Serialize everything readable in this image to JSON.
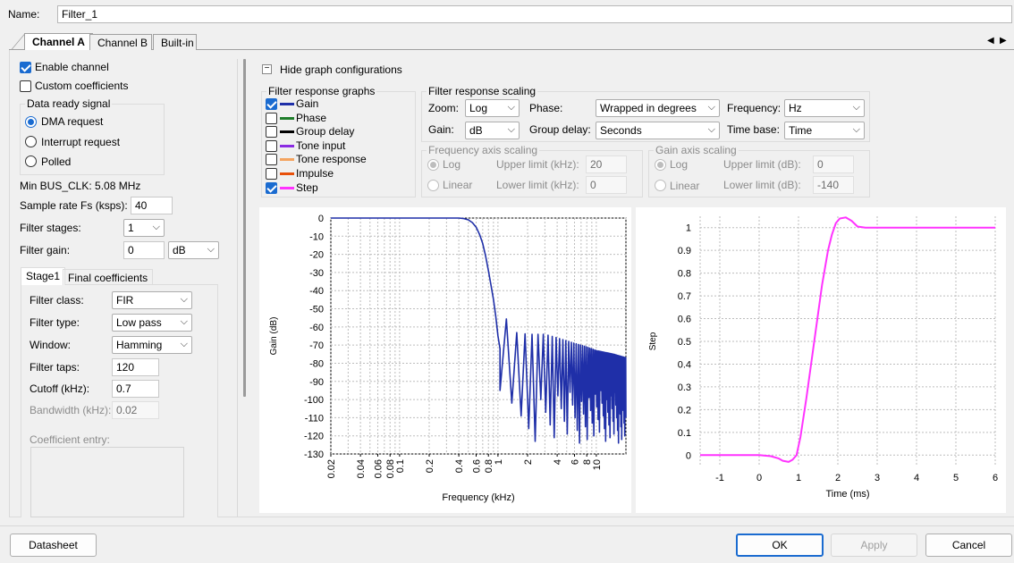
{
  "name_label": "Name:",
  "name_value": "Filter_1",
  "tabs": [
    "Channel A",
    "Channel B",
    "Built-in"
  ],
  "left": {
    "enable_channel": "Enable channel",
    "custom_coefficients": "Custom coefficients",
    "data_ready_signal": "Data ready signal",
    "dma_request": "DMA request",
    "interrupt_request": "Interrupt request",
    "polled": "Polled",
    "min_bus_clk": "Min BUS_CLK: 5.08 MHz",
    "sample_rate_label": "Sample rate Fs (ksps):",
    "sample_rate_value": "40",
    "filter_stages_label": "Filter stages:",
    "filter_stages_value": "1",
    "filter_gain_label": "Filter gain:",
    "filter_gain_value": "0",
    "filter_gain_unit": "dB",
    "stage_tabs": [
      "Stage1",
      "Final coefficients"
    ],
    "filter_class_label": "Filter class:",
    "filter_class_value": "FIR",
    "filter_type_label": "Filter type:",
    "filter_type_value": "Low pass",
    "window_label": "Window:",
    "window_value": "Hamming",
    "filter_taps_label": "Filter taps:",
    "filter_taps_value": "120",
    "cutoff_label": "Cutoff (kHz):",
    "cutoff_value": "0.7",
    "bandwidth_label": "Bandwidth (kHz):",
    "bandwidth_value": "0.02",
    "coefficient_entry": "Coefficient entry:"
  },
  "graph_config": {
    "toggle_label": "Hide graph configurations",
    "toggle_symbol": "−",
    "response_graphs_title": "Filter response graphs",
    "graphs": [
      {
        "label": "Gain",
        "checked": true,
        "color": "#1f2fa8"
      },
      {
        "label": "Phase",
        "checked": false,
        "color": "#1e7d2a"
      },
      {
        "label": "Group delay",
        "checked": false,
        "color": "#000000"
      },
      {
        "label": "Tone input",
        "checked": false,
        "color": "#8a2be2"
      },
      {
        "label": "Tone response",
        "checked": false,
        "color": "#f4a460"
      },
      {
        "label": "Impulse",
        "checked": false,
        "color": "#e8500a"
      },
      {
        "label": "Step",
        "checked": true,
        "color": "#ff33ff"
      }
    ],
    "scaling_title": "Filter response scaling",
    "zoom_label": "Zoom:",
    "zoom_value": "Log",
    "gain_label": "Gain:",
    "gain_value": "dB",
    "phase_label": "Phase:",
    "phase_value": "Wrapped in degrees",
    "group_delay_label": "Group delay:",
    "group_delay_value": "Seconds",
    "frequency_label": "Frequency:",
    "frequency_value": "Hz",
    "time_base_label": "Time base:",
    "time_base_value": "Time",
    "freq_axis_title": "Frequency axis scaling",
    "freq_log": "Log",
    "freq_linear": "Linear",
    "freq_upper_label": "Upper limit (kHz):",
    "freq_upper_value": "20",
    "freq_lower_label": "Lower limit (kHz):",
    "freq_lower_value": "0",
    "gain_axis_title": "Gain axis scaling",
    "gain_log": "Log",
    "gain_linear": "Linear",
    "gain_upper_label": "Upper limit (dB):",
    "gain_upper_value": "0",
    "gain_lower_label": "Lower limit (dB):",
    "gain_lower_value": "-140"
  },
  "buttons": {
    "datasheet": "Datasheet",
    "ok": "OK",
    "apply": "Apply",
    "cancel": "Cancel"
  },
  "chart_data": [
    {
      "type": "line",
      "xlabel": "Frequency (kHz)",
      "ylabel": "Gain (dB)",
      "x_scale": "log",
      "xlim": [
        0.02,
        20
      ],
      "ylim": [
        -130,
        0
      ],
      "x_ticks": [
        "0.02",
        "0.04",
        "0.06",
        "0.08",
        "0.1",
        "0.2",
        "0.4",
        "0.6",
        "0.8",
        "1",
        "2",
        "4",
        "6",
        "8",
        "10"
      ],
      "y_ticks": [
        "0",
        "-10",
        "-20",
        "-30",
        "-40",
        "-50",
        "-60",
        "-70",
        "-80",
        "-90",
        "-100",
        "-110",
        "-120",
        "-130"
      ],
      "series": [
        {
          "color": "#1f2fa8",
          "x": [
            0.02,
            0.1,
            0.2,
            0.3,
            0.4,
            0.45,
            0.5,
            0.55,
            0.6,
            0.65,
            0.7,
            0.75,
            0.8,
            0.85,
            0.9,
            0.95,
            1.0,
            1.05
          ],
          "y": [
            0,
            0,
            0,
            0,
            0,
            -0.3,
            -1,
            -2.5,
            -5,
            -9,
            -14,
            -21,
            -29,
            -37,
            -45,
            -54,
            -65,
            -72
          ],
          "sidelobe_peaks_x": [
            1.1,
            1.5,
            2.0,
            3.0,
            4.0,
            6.0,
            8.0,
            10.0,
            15.0,
            20.0
          ],
          "sidelobe_peaks_y": [
            -52,
            -63,
            -64,
            -64,
            -66,
            -69,
            -71,
            -73,
            -75,
            -77
          ]
        }
      ],
      "grid": true
    },
    {
      "type": "line",
      "xlabel": "Time (ms)",
      "ylabel": "Step",
      "xlim": [
        -1.5,
        6
      ],
      "ylim": [
        -0.05,
        1.05
      ],
      "x_ticks": [
        "-1",
        "0",
        "1",
        "2",
        "3",
        "4",
        "5",
        "6"
      ],
      "y_ticks": [
        "1",
        "0.9",
        "0.8",
        "0.7",
        "0.6",
        "0.5",
        "0.4",
        "0.3",
        "0.2",
        "0.1",
        "0"
      ],
      "series": [
        {
          "color": "#ff33ff",
          "x": [
            -1.5,
            0,
            0.3,
            0.5,
            0.6,
            0.75,
            0.85,
            0.95,
            1.05,
            1.2,
            1.4,
            1.6,
            1.75,
            1.85,
            1.95,
            2.05,
            2.2,
            2.35,
            2.5,
            2.7,
            3.0,
            4.0,
            6.0
          ],
          "y": [
            0,
            0,
            -0.005,
            -0.015,
            -0.025,
            -0.03,
            -0.02,
            0.0,
            0.08,
            0.25,
            0.5,
            0.75,
            0.9,
            0.97,
            1.02,
            1.04,
            1.045,
            1.03,
            1.005,
            1.0,
            1.0,
            1.0,
            1.0
          ]
        }
      ],
      "grid": true
    }
  ]
}
